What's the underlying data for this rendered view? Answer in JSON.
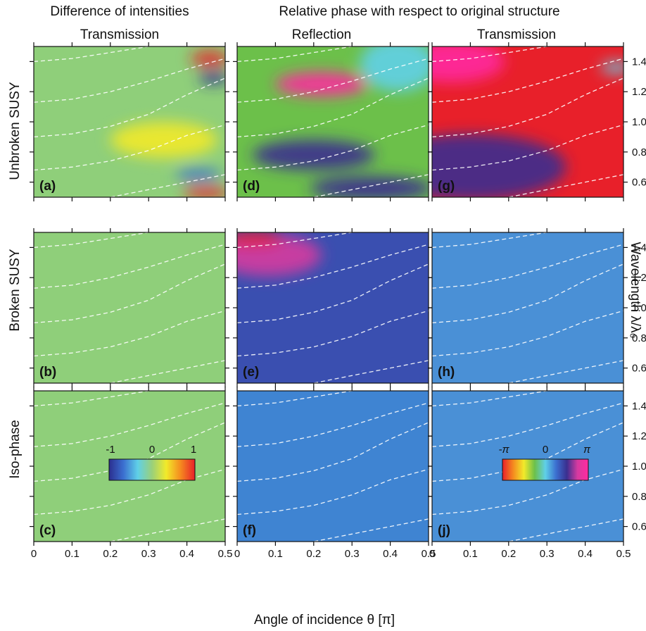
{
  "headers": {
    "left": "Difference of intensities",
    "right": "Relative phase with respect to original structure"
  },
  "columns": [
    "Transmission",
    "Reflection",
    "Transmission"
  ],
  "rows": [
    "Unbroken SUSY",
    "Broken SUSY",
    "Iso-phase"
  ],
  "xlabel": "Angle of incidence θ [π]",
  "ylabel": "Wavelength λ/λ₀",
  "colorbars": {
    "intensity": {
      "ticks": [
        "-1",
        "0",
        "1"
      ],
      "colors": [
        "#2b2f8f",
        "#3b6fd0",
        "#5fd0e8",
        "#9ad07a",
        "#f2ea2a",
        "#f58a1f",
        "#e8202a"
      ]
    },
    "phase": {
      "ticks": [
        "-π",
        "0",
        "π"
      ],
      "colors": [
        "#e8202a",
        "#f58a1f",
        "#f2ea2a",
        "#6cc04a",
        "#5fd0e8",
        "#3b6fd0",
        "#3a2f8f",
        "#d63aa0",
        "#ff2aa0"
      ]
    }
  },
  "chart_data": {
    "type": "heatmap",
    "title": "",
    "xlabel": "Angle of incidence θ [π]",
    "ylabel": "Wavelength λ/λ₀",
    "xlim": [
      0,
      0.5
    ],
    "ylim": [
      0.5,
      1.5
    ],
    "x_ticks": [
      "0",
      "0.1",
      "0.2",
      "0.3",
      "0.4",
      "0.5"
    ],
    "y_ticks": [
      "0.6",
      "0.8",
      "1.0",
      "1.2",
      "1.4"
    ],
    "dashed_curves": [
      {
        "x": [
          0,
          0.1,
          0.2,
          0.3,
          0.4,
          0.5
        ],
        "y": [
          1.4,
          1.42,
          1.46,
          1.5,
          1.52,
          1.53
        ]
      },
      {
        "x": [
          0,
          0.1,
          0.2,
          0.3,
          0.4,
          0.5
        ],
        "y": [
          1.13,
          1.15,
          1.2,
          1.27,
          1.35,
          1.42
        ]
      },
      {
        "x": [
          0,
          0.1,
          0.2,
          0.3,
          0.4,
          0.5
        ],
        "y": [
          0.9,
          0.92,
          0.97,
          1.05,
          1.18,
          1.29
        ]
      },
      {
        "x": [
          0,
          0.1,
          0.2,
          0.3,
          0.4,
          0.5
        ],
        "y": [
          0.68,
          0.7,
          0.74,
          0.81,
          0.91,
          0.98
        ]
      },
      {
        "x": [
          0,
          0.1,
          0.2,
          0.3,
          0.4,
          0.5
        ],
        "y": [
          0.44,
          0.46,
          0.5,
          0.55,
          0.6,
          0.65
        ]
      }
    ],
    "panels": [
      {
        "id": "a",
        "label": "(a)",
        "row": "Unbroken SUSY",
        "column": "Transmission",
        "quantity": "Difference of intensities",
        "background": "#8fcf7a",
        "features": [
          {
            "x": 0.46,
            "y": 1.42,
            "color": "#e8202a",
            "rx": 0.05,
            "ry": 0.05
          },
          {
            "x": 0.47,
            "y": 1.29,
            "color": "#2b2f8f",
            "rx": 0.04,
            "ry": 0.04
          },
          {
            "x": 0.34,
            "y": 0.88,
            "color": "#f2ea2a",
            "rx": 0.14,
            "ry": 0.12
          },
          {
            "x": 0.43,
            "y": 0.65,
            "color": "#3b6fd0",
            "rx": 0.06,
            "ry": 0.04
          },
          {
            "x": 0.45,
            "y": 0.53,
            "color": "#e8202a",
            "rx": 0.06,
            "ry": 0.04
          }
        ]
      },
      {
        "id": "d",
        "label": "(d)",
        "row": "Unbroken SUSY",
        "column": "Reflection",
        "quantity": "Relative phase",
        "background": "#6cc04a",
        "features": [
          {
            "x": 0.22,
            "y": 1.25,
            "color": "#ff2aa0",
            "rx": 0.12,
            "ry": 0.08
          },
          {
            "x": 0.42,
            "y": 1.38,
            "color": "#5fd0e8",
            "rx": 0.1,
            "ry": 0.18
          },
          {
            "x": 0.2,
            "y": 0.78,
            "color": "#3a2f8f",
            "rx": 0.16,
            "ry": 0.1
          },
          {
            "x": 0.35,
            "y": 0.56,
            "color": "#3a2f8f",
            "rx": 0.16,
            "ry": 0.08
          }
        ]
      },
      {
        "id": "g",
        "label": "(g)",
        "row": "Unbroken SUSY",
        "column": "Transmission",
        "quantity": "Relative phase",
        "background": "#e8202a",
        "features": [
          {
            "x": 0.05,
            "y": 1.4,
            "color": "#ff2aa0",
            "rx": 0.14,
            "ry": 0.14
          },
          {
            "x": 0.1,
            "y": 0.7,
            "color": "#3a2f8f",
            "rx": 0.25,
            "ry": 0.22
          },
          {
            "x": 0.48,
            "y": 1.36,
            "color": "#5fd0e8",
            "rx": 0.04,
            "ry": 0.04
          }
        ]
      },
      {
        "id": "b",
        "label": "(b)",
        "row": "Broken SUSY",
        "column": "Transmission",
        "quantity": "Difference of intensities",
        "background": "#8fcf7a",
        "features": []
      },
      {
        "id": "e",
        "label": "(e)",
        "row": "Broken SUSY",
        "column": "Reflection",
        "quantity": "Relative phase",
        "background": "#3a4fb0",
        "features": [
          {
            "x": 0.08,
            "y": 1.35,
            "color": "#d63aa0",
            "rx": 0.14,
            "ry": 0.14
          },
          {
            "x": 0.04,
            "y": 1.46,
            "color": "#e8202a",
            "rx": 0.08,
            "ry": 0.05
          }
        ]
      },
      {
        "id": "h",
        "label": "(h)",
        "row": "Broken SUSY",
        "column": "Transmission",
        "quantity": "Relative phase",
        "background": "#4a90d6",
        "features": []
      },
      {
        "id": "c",
        "label": "(c)",
        "row": "Iso-phase",
        "column": "Transmission",
        "quantity": "Difference of intensities",
        "background": "#8fcf7a",
        "features": []
      },
      {
        "id": "f",
        "label": "(f)",
        "row": "Iso-phase",
        "column": "Reflection",
        "quantity": "Relative phase",
        "background": "#3f84d2",
        "features": []
      },
      {
        "id": "j",
        "label": "(j)",
        "row": "Iso-phase",
        "column": "Transmission",
        "quantity": "Relative phase",
        "background": "#4a90d6",
        "features": []
      }
    ]
  }
}
